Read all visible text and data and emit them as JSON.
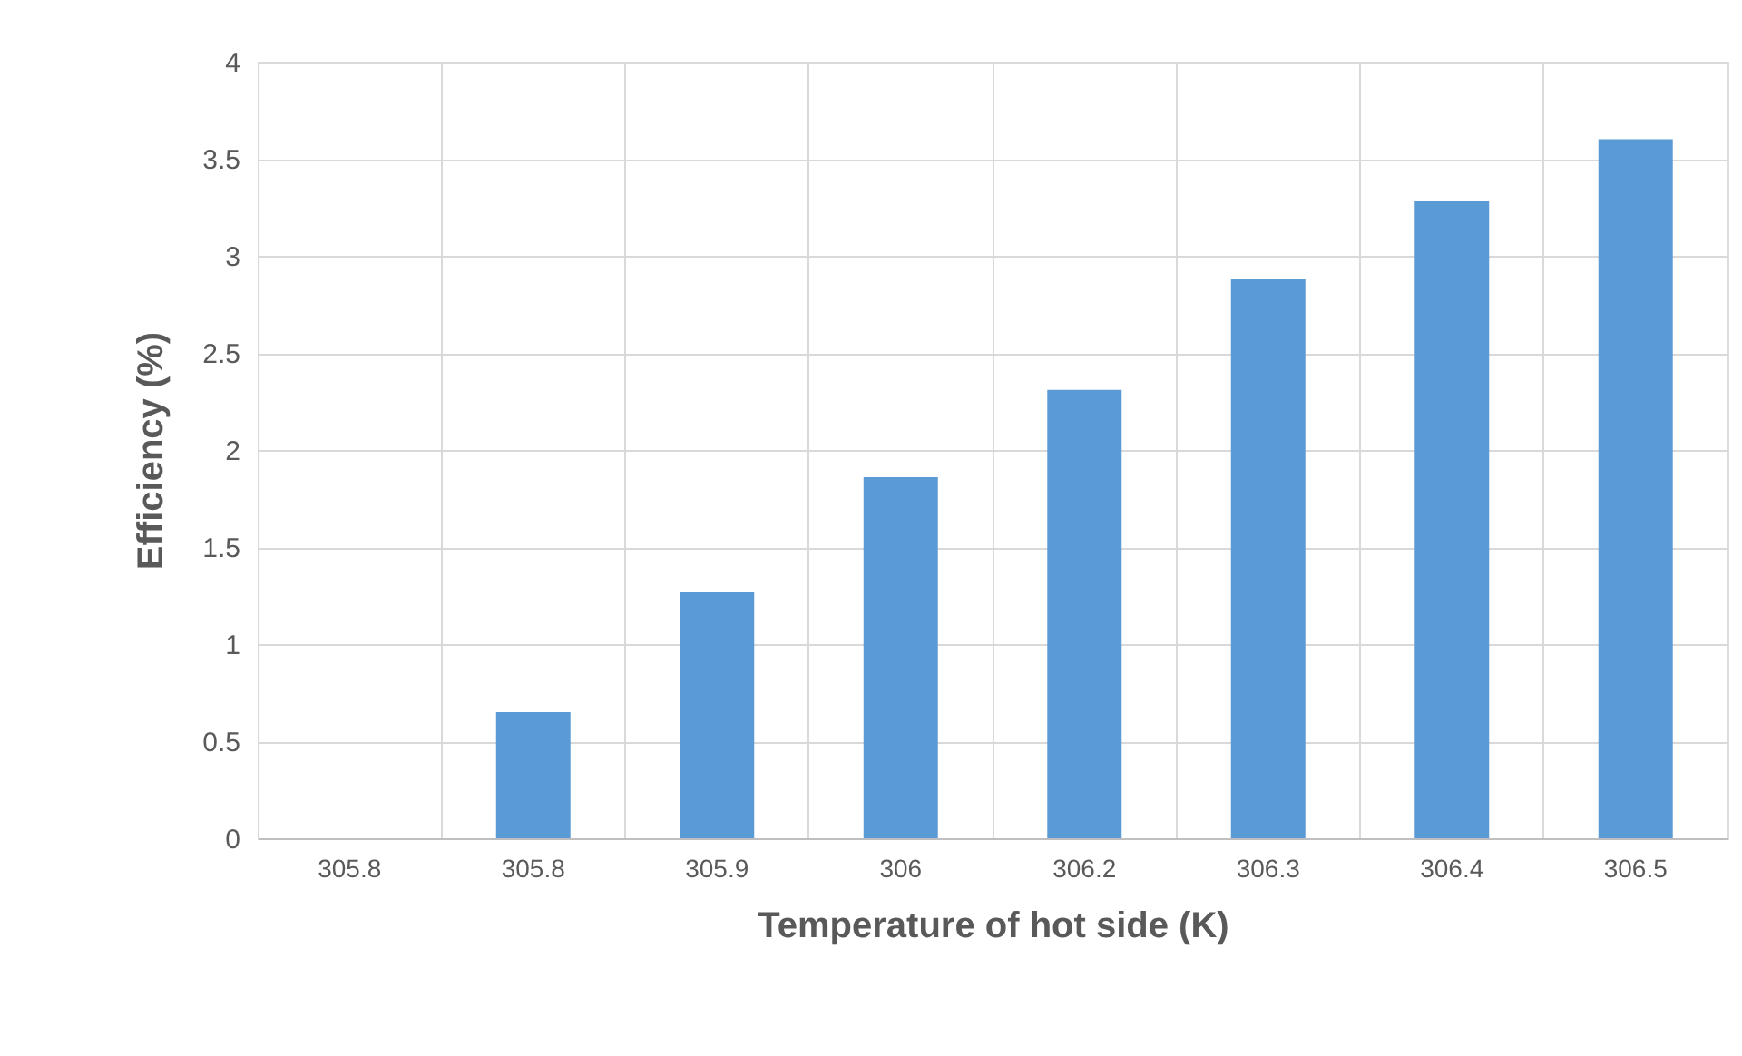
{
  "chart_data": {
    "type": "bar",
    "xlabel": "Temperature of hot side (K)",
    "ylabel": "Efficiency (%)",
    "categories": [
      "305.8",
      "305.8",
      "305.9",
      "306",
      "306.2",
      "306.3",
      "306.4",
      "306.5"
    ],
    "values": [
      0,
      0.65,
      1.27,
      1.86,
      2.31,
      2.88,
      3.28,
      3.6
    ],
    "color": "#5b9bd5",
    "ylim": [
      0,
      4
    ],
    "yticks": [
      0,
      0.5,
      1,
      1.5,
      2,
      2.5,
      3,
      3.5,
      4
    ],
    "grid": true
  }
}
